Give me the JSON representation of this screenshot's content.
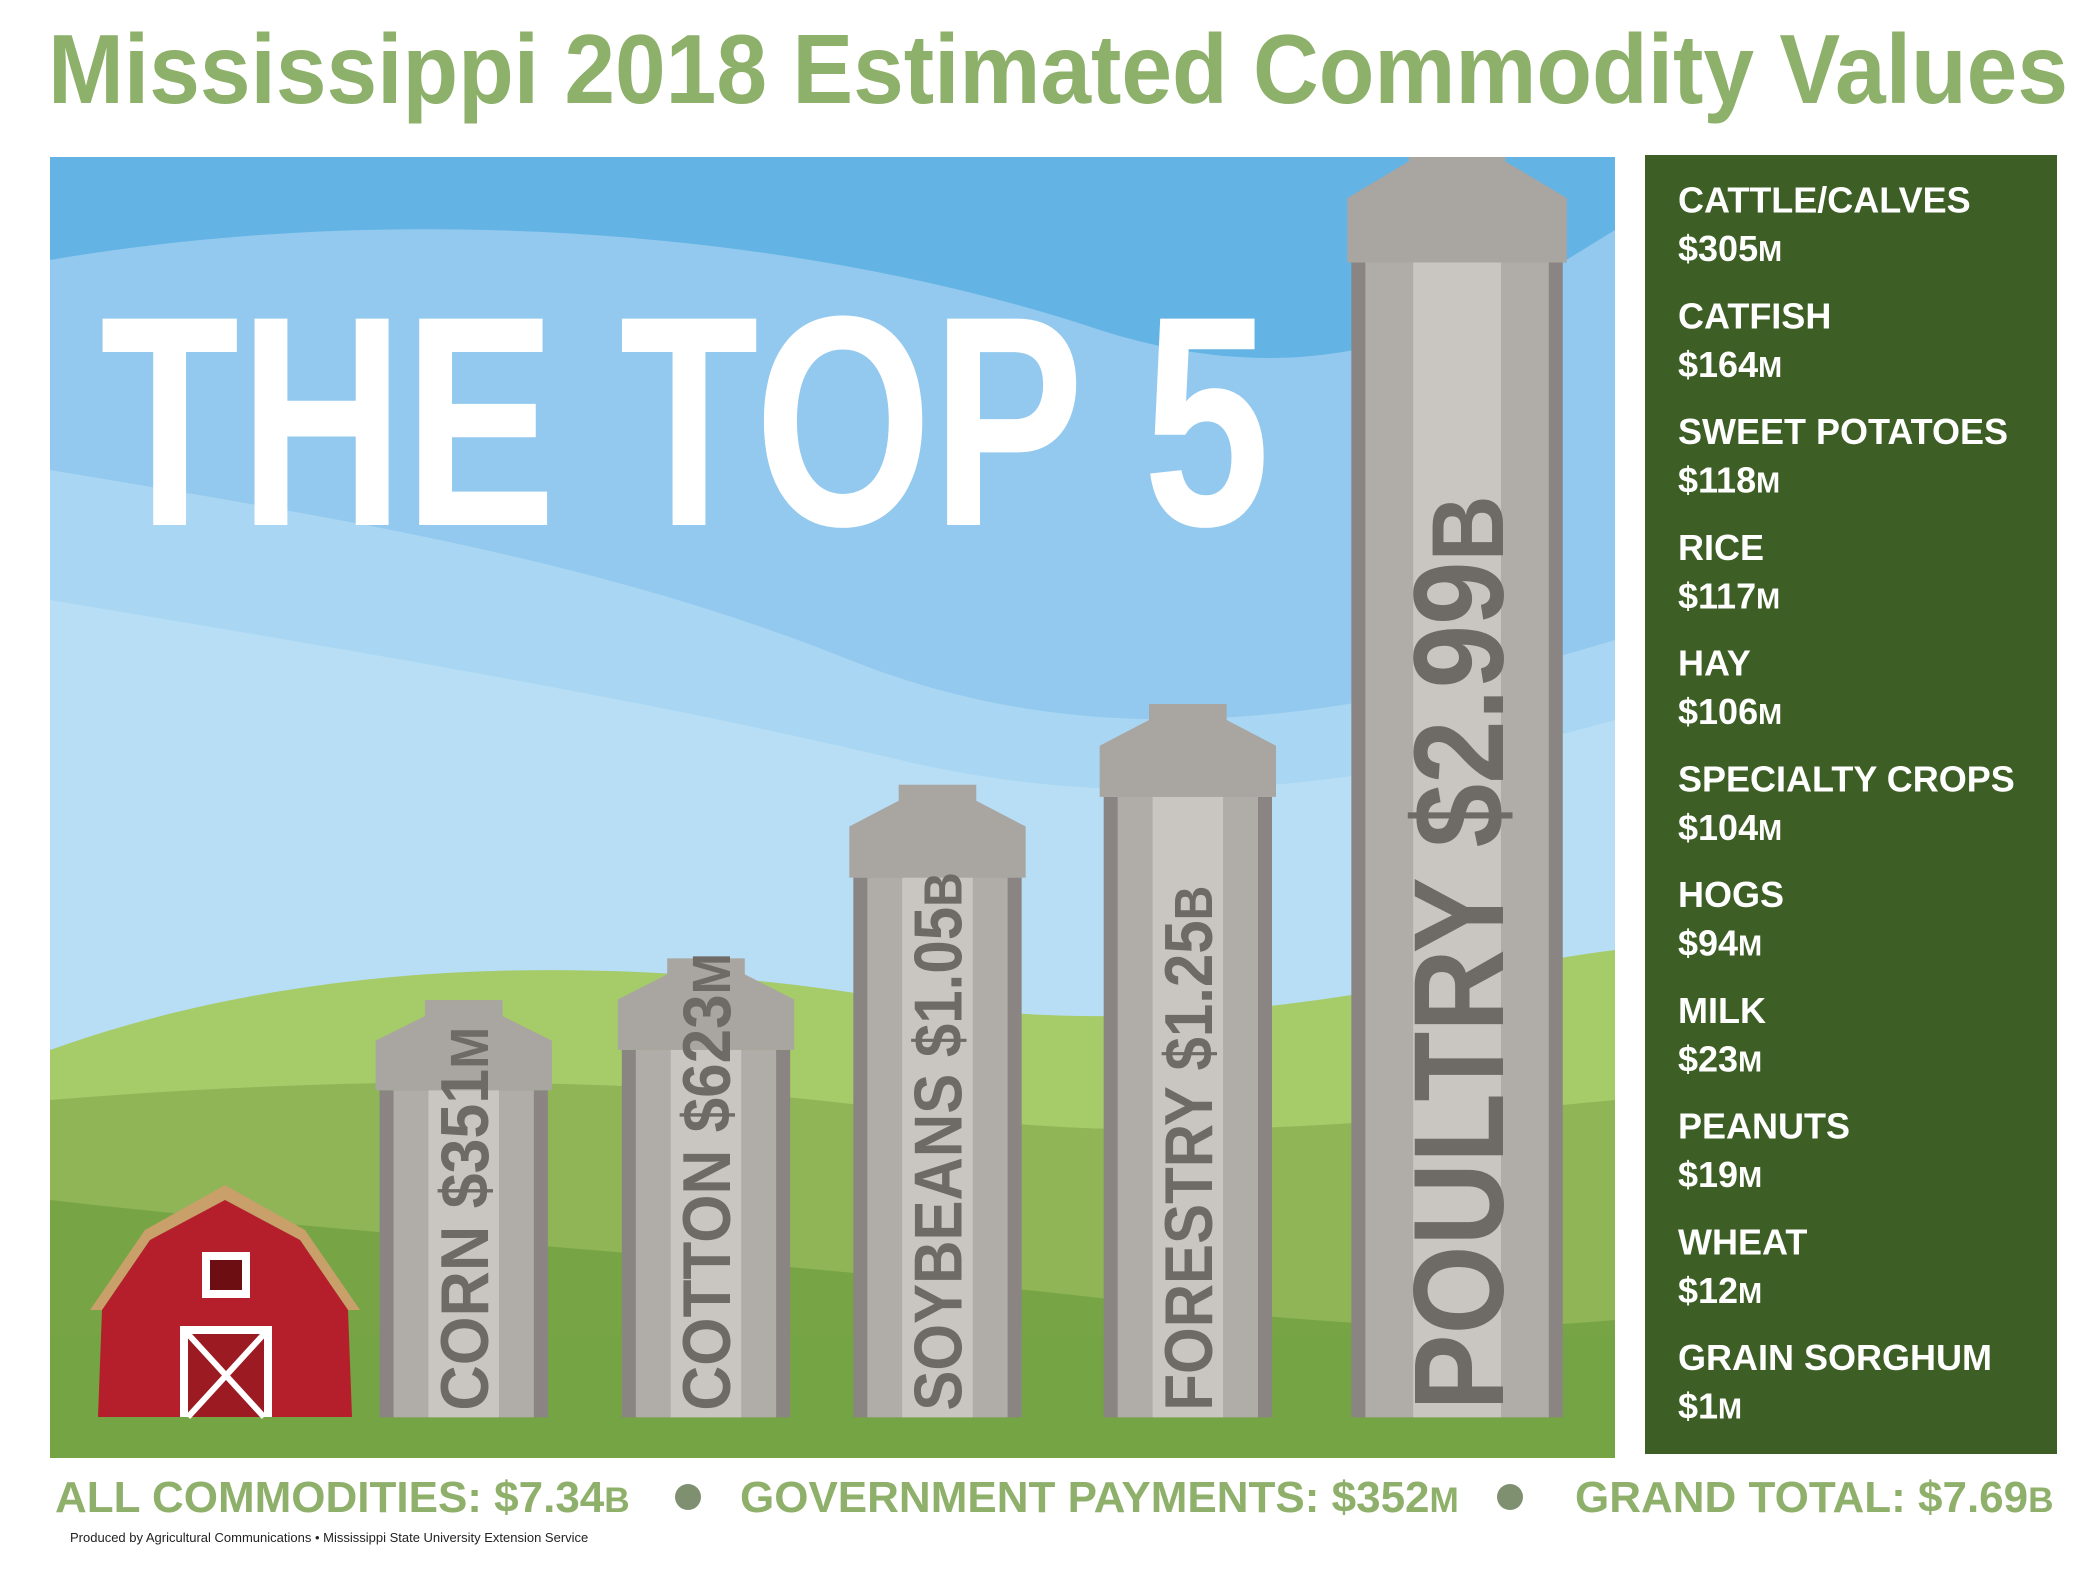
{
  "title": "Mississippi 2018 Estimated Commodity Values",
  "headline": "THE TOP 5",
  "top5": [
    {
      "name": "CORN",
      "amount": "$351",
      "unit": "M"
    },
    {
      "name": "COTTON",
      "amount": "$623",
      "unit": "M"
    },
    {
      "name": "SOYBEANS",
      "amount": "$1.05",
      "unit": "B"
    },
    {
      "name": "FORESTRY",
      "amount": "$1.25",
      "unit": "B"
    },
    {
      "name": "POULTRY",
      "amount": "$2.99",
      "unit": "B"
    }
  ],
  "others": [
    {
      "name": "CATTLE/CALVES",
      "amount": "$305",
      "unit": "M"
    },
    {
      "name": "CATFISH",
      "amount": "$164",
      "unit": "M"
    },
    {
      "name": "SWEET POTATOES",
      "amount": "$118",
      "unit": "M"
    },
    {
      "name": "RICE",
      "amount": "$117",
      "unit": "M"
    },
    {
      "name": "HAY",
      "amount": "$106",
      "unit": "M"
    },
    {
      "name": "SPECIALTY CROPS",
      "amount": "$104",
      "unit": "M"
    },
    {
      "name": "HOGS",
      "amount": "$94",
      "unit": "M"
    },
    {
      "name": "MILK",
      "amount": "$23",
      "unit": "M"
    },
    {
      "name": "PEANUTS",
      "amount": "$19",
      "unit": "M"
    },
    {
      "name": "WHEAT",
      "amount": "$12",
      "unit": "M"
    },
    {
      "name": "GRAIN SORGHUM",
      "amount": "$1",
      "unit": "M"
    }
  ],
  "footer": [
    {
      "label": "ALL COMMODITIES:",
      "amount": "$7.34",
      "unit": "B"
    },
    {
      "label": "GOVERNMENT PAYMENTS:",
      "amount": "$352",
      "unit": "M"
    },
    {
      "label": "GRAND TOTAL:",
      "amount": "$7.69",
      "unit": "B"
    }
  ],
  "credit": "Produced by Agricultural Communications • Mississippi State University Extension Service"
}
